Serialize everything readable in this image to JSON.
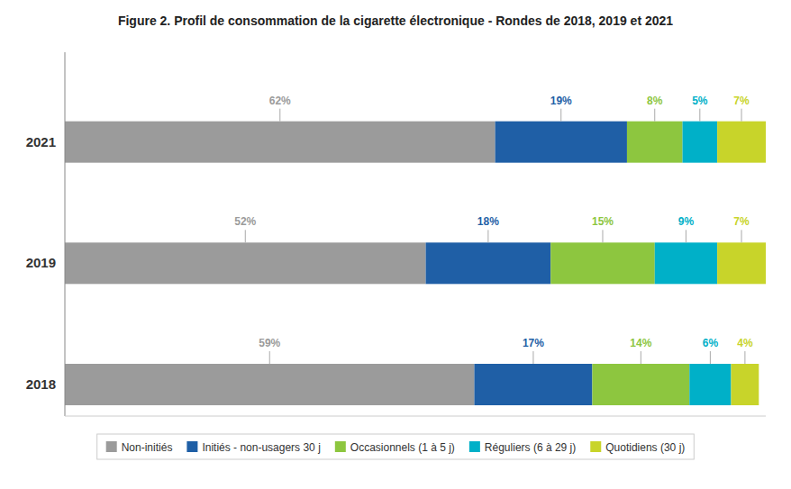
{
  "chart_data": {
    "type": "bar",
    "orientation": "horizontal",
    "stacked": true,
    "title": "Figure 2. Profil de consommation de la cigarette électronique - Rondes de 2018, 2019 et 2021",
    "categories": [
      "2021",
      "2019",
      "2018"
    ],
    "series": [
      {
        "name": "Non-initiés",
        "color": "#9B9B9B",
        "values": [
          62,
          52,
          59
        ],
        "value_labels": [
          "62%",
          "52%",
          "59%"
        ]
      },
      {
        "name": "Initiés - non-usagers 30 j",
        "color": "#1F5FA6",
        "values": [
          19,
          18,
          17
        ],
        "value_labels": [
          "19%",
          "18%",
          "17%"
        ]
      },
      {
        "name": "Occasionnels (1 à 5 j)",
        "color": "#8DC63F",
        "values": [
          8,
          15,
          14
        ],
        "value_labels": [
          "8%",
          "15%",
          "14%"
        ]
      },
      {
        "name": "Réguliers (6 à 29 j)",
        "color": "#00B0C8",
        "values": [
          5,
          9,
          6
        ],
        "value_labels": [
          "5%",
          "9%",
          "6%"
        ]
      },
      {
        "name": "Quotidiens (30 j)",
        "color": "#C8D42A",
        "values": [
          7,
          7,
          4
        ],
        "value_labels": [
          "7%",
          "7%",
          "4%"
        ]
      }
    ],
    "xlim": [
      0,
      101
    ],
    "data_labels": true,
    "tick_labels": "y",
    "grid": false,
    "legend": "bottom"
  }
}
